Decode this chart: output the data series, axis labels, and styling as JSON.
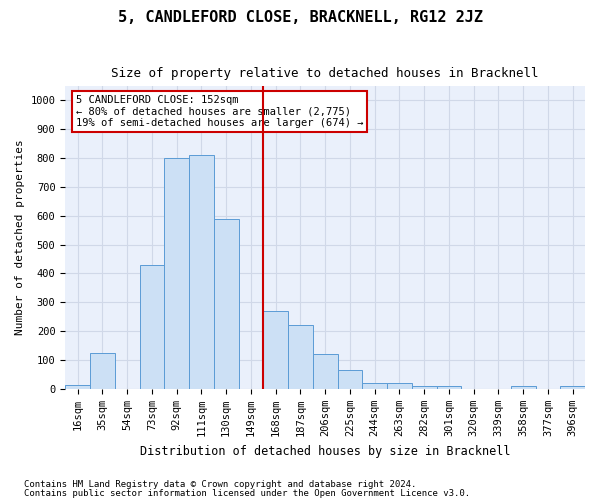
{
  "title": "5, CANDLEFORD CLOSE, BRACKNELL, RG12 2JZ",
  "subtitle": "Size of property relative to detached houses in Bracknell",
  "xlabel": "Distribution of detached houses by size in Bracknell",
  "ylabel": "Number of detached properties",
  "footnote1": "Contains HM Land Registry data © Crown copyright and database right 2024.",
  "footnote2": "Contains public sector information licensed under the Open Government Licence v3.0.",
  "bins": [
    "16sqm",
    "35sqm",
    "54sqm",
    "73sqm",
    "92sqm",
    "111sqm",
    "130sqm",
    "149sqm",
    "168sqm",
    "187sqm",
    "206sqm",
    "225sqm",
    "244sqm",
    "263sqm",
    "282sqm",
    "301sqm",
    "320sqm",
    "339sqm",
    "358sqm",
    "377sqm",
    "396sqm"
  ],
  "values": [
    15,
    125,
    0,
    430,
    800,
    810,
    590,
    0,
    270,
    220,
    120,
    65,
    20,
    20,
    10,
    10,
    0,
    0,
    10,
    0,
    10
  ],
  "bar_color": "#cce0f5",
  "bar_edge_color": "#5b9bd5",
  "grid_color": "#d0d8e8",
  "bg_color": "#eaf0fb",
  "vline_index": 7.5,
  "vline_color": "#cc0000",
  "annotation_text": "5 CANDLEFORD CLOSE: 152sqm\n← 80% of detached houses are smaller (2,775)\n19% of semi-detached houses are larger (674) →",
  "annotation_box_color": "#cc0000",
  "ylim": [
    0,
    1050
  ],
  "yticks": [
    0,
    100,
    200,
    300,
    400,
    500,
    600,
    700,
    800,
    900,
    1000
  ],
  "title_fontsize": 11,
  "subtitle_fontsize": 9,
  "tick_fontsize": 7.5,
  "ylabel_fontsize": 8,
  "xlabel_fontsize": 8.5,
  "annot_fontsize": 7.5,
  "footnote_fontsize": 6.5
}
